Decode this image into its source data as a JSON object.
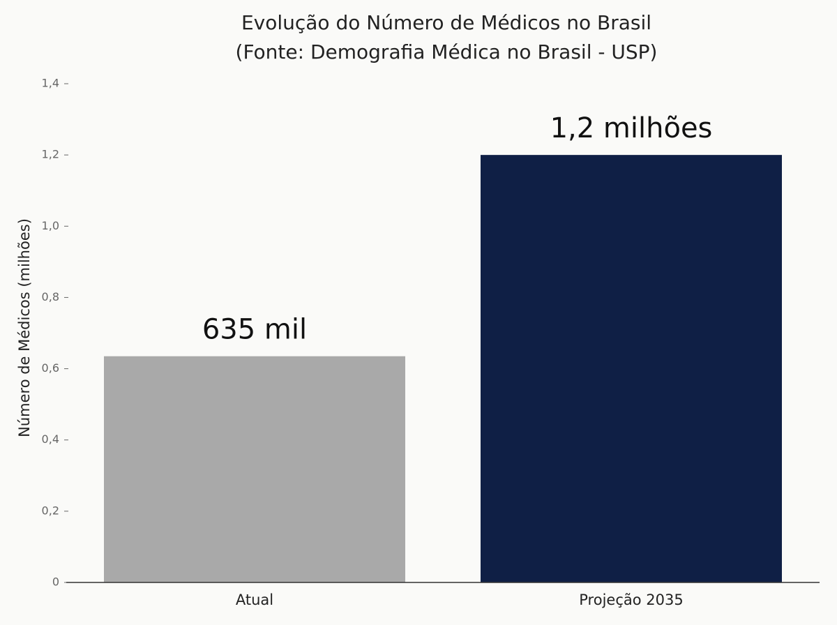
{
  "chart_data": {
    "type": "bar",
    "title": "Evolução do Número de Médicos no Brasil",
    "subtitle": "(Fonte: Demografia Médica no Brasil - USP)",
    "y_label": "Número de Médicos (milhões)",
    "categories": [
      "Atual",
      "Projeção 2035"
    ],
    "values": [
      0.635,
      1.2
    ],
    "value_labels": [
      "635 mil",
      "1,2 milhões"
    ],
    "colors": [
      "#a9a9a9",
      "#0f1f45"
    ],
    "ylim": [
      0,
      1.4
    ],
    "yticks": [
      0,
      {
        "value": 0.2,
        "label": "0,2"
      },
      {
        "value": 0.4,
        "label": "0,4"
      },
      {
        "value": 0.6,
        "label": "0,6"
      },
      {
        "value": 0.8,
        "label": "0,8"
      },
      {
        "value": 1.0,
        "label": "1,0"
      },
      {
        "value": 1.2,
        "label": "1,2"
      },
      {
        "value": 1.4,
        "label": "1,4"
      }
    ],
    "grid": false
  }
}
